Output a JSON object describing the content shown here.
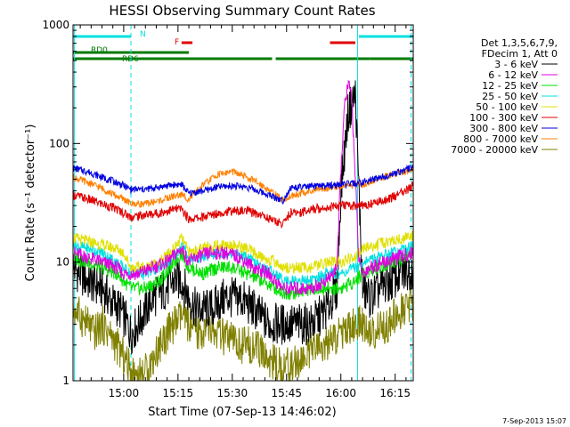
{
  "chart_data": {
    "type": "line",
    "title": "HESSI Observing Summary Count Rates",
    "xlabel": "Start Time (07-Sep-13 14:46:02)",
    "ylabel": "Count Rate (s⁻¹ detector⁻¹)",
    "y_scale": "log",
    "ylim": [
      1,
      1000
    ],
    "xlim_minutes": [
      46,
      140
    ],
    "x_ticks": [
      {
        "minute": 60,
        "label": "15:00"
      },
      {
        "minute": 75,
        "label": "15:15"
      },
      {
        "minute": 90,
        "label": "15:30"
      },
      {
        "minute": 105,
        "label": "15:45"
      },
      {
        "minute": 120,
        "label": "16:00"
      },
      {
        "minute": 135,
        "label": "16:15"
      }
    ],
    "y_ticks": [
      {
        "value": 1,
        "label": "1"
      },
      {
        "value": 10,
        "label": "10"
      },
      {
        "value": 100,
        "label": "100"
      },
      {
        "value": 1000,
        "label": "1000"
      }
    ],
    "legend_header": [
      "Det 1,3,5,6,7,9,",
      "FDecim 1, Att 0"
    ],
    "legend_position": "right",
    "timestamp": "7-Sep-2013 15:07",
    "flag_labels": {
      "n": "N",
      "f": "F",
      "rd0": "RD0",
      "rd6": "RD6"
    },
    "flags": {
      "n": {
        "color": "#00e0e0",
        "intervals": [
          [
            46,
            62
          ],
          [
            125,
            140
          ]
        ]
      },
      "f": {
        "color": "#e00000",
        "intervals": [
          [
            76,
            79
          ],
          [
            117,
            124
          ]
        ]
      },
      "rd0": {
        "color": "#007a00",
        "intervals": [
          [
            46,
            78
          ]
        ]
      },
      "rd6": {
        "color": "#007a00",
        "intervals": [
          [
            46,
            60
          ],
          [
            60,
            101
          ],
          [
            102,
            128
          ],
          [
            128,
            140
          ]
        ]
      }
    },
    "vlines": [
      {
        "minute": 46.4,
        "style": "solid",
        "color": "#00e0e0"
      },
      {
        "minute": 62,
        "style": "dashed",
        "color": "#00e0e0"
      },
      {
        "minute": 124.6,
        "style": "solid",
        "color": "#00e0e0"
      },
      {
        "minute": 139.4,
        "style": "dashed",
        "color": "#00e0e0"
      }
    ],
    "series": [
      {
        "name": "3 - 6 keV",
        "color": "#000000",
        "x": [
          46,
          50,
          54,
          57,
          59,
          61,
          62,
          64,
          68,
          72,
          74,
          76,
          78,
          80,
          84,
          88,
          92,
          96,
          100,
          104,
          108,
          112,
          116,
          119,
          120,
          122,
          124,
          126,
          128,
          131,
          134,
          137,
          140
        ],
        "y": [
          9,
          7,
          6,
          4.5,
          4,
          3,
          2.5,
          3,
          5,
          6,
          7,
          7,
          5,
          4,
          4,
          5,
          5,
          4,
          3,
          3,
          3,
          3,
          4,
          6,
          40,
          180,
          260,
          6,
          5,
          6,
          7,
          8,
          9
        ]
      },
      {
        "name": "6 - 12 keV",
        "color": "#e000e0",
        "x": [
          46,
          50,
          54,
          58,
          60,
          62,
          64,
          68,
          72,
          76,
          78,
          80,
          84,
          88,
          92,
          96,
          100,
          104,
          108,
          112,
          116,
          118,
          119,
          120,
          121,
          122,
          123,
          124,
          125,
          126,
          128,
          132,
          136,
          140
        ],
        "y": [
          12,
          11,
          10,
          9,
          8,
          8,
          8,
          9,
          10,
          13,
          10,
          11,
          12,
          12,
          11,
          9,
          8,
          6,
          6,
          6,
          7,
          8,
          10,
          60,
          200,
          320,
          250,
          50,
          10,
          8,
          9,
          10,
          11,
          12
        ]
      },
      {
        "name": "12 - 25 keV",
        "color": "#00e000",
        "x": [
          46,
          50,
          54,
          58,
          62,
          66,
          70,
          74,
          76,
          78,
          82,
          86,
          90,
          94,
          98,
          102,
          104,
          108,
          112,
          116,
          120,
          124,
          126,
          130,
          134,
          138,
          140
        ],
        "y": [
          11,
          10,
          9,
          8,
          6,
          6,
          7,
          10,
          12,
          9,
          8,
          9,
          9,
          8,
          7,
          6,
          5.5,
          5.5,
          6,
          6,
          6,
          7,
          8,
          9,
          10,
          11,
          12
        ]
      },
      {
        "name": "25 - 50 keV",
        "color": "#00e0e0",
        "x": [
          46,
          50,
          54,
          58,
          62,
          66,
          70,
          74,
          76,
          78,
          82,
          86,
          90,
          94,
          98,
          102,
          104,
          108,
          112,
          116,
          120,
          124,
          126,
          130,
          134,
          138,
          140
        ],
        "y": [
          14,
          13,
          12,
          10,
          8,
          8,
          9,
          11,
          14,
          11,
          11,
          12,
          12,
          11,
          9,
          8,
          7,
          7,
          7,
          8,
          8,
          9,
          10,
          11,
          12,
          13,
          14
        ]
      },
      {
        "name": "50 - 100 keV",
        "color": "#e0e000",
        "x": [
          46,
          50,
          54,
          58,
          60,
          62,
          66,
          70,
          74,
          76,
          78,
          82,
          86,
          90,
          94,
          98,
          102,
          104,
          108,
          112,
          116,
          120,
          124,
          126,
          130,
          134,
          138,
          140
        ],
        "y": [
          16,
          15,
          14,
          13,
          12,
          9,
          9,
          10,
          13,
          16,
          12,
          13,
          14,
          14,
          13,
          11,
          10,
          9,
          9,
          9,
          10,
          10,
          11,
          13,
          14,
          15,
          16,
          17
        ]
      },
      {
        "name": "100 - 300 keV",
        "color": "#e00000",
        "x": [
          46,
          50,
          54,
          58,
          60,
          62,
          66,
          70,
          74,
          76,
          78,
          82,
          86,
          90,
          94,
          98,
          102,
          104,
          106,
          108,
          112,
          116,
          120,
          124,
          126,
          130,
          134,
          138,
          140
        ],
        "y": [
          37,
          34,
          31,
          28,
          26,
          24,
          25,
          26,
          28,
          28,
          23,
          24,
          26,
          27,
          27,
          25,
          22,
          21,
          26,
          26,
          28,
          29,
          30,
          30,
          30,
          32,
          35,
          40,
          44
        ]
      },
      {
        "name": "300 - 800 keV",
        "color": "#0000e0",
        "x": [
          46,
          50,
          54,
          58,
          60,
          62,
          66,
          70,
          74,
          76,
          78,
          82,
          86,
          90,
          94,
          98,
          102,
          104,
          106,
          110,
          116,
          120,
          124,
          126,
          130,
          134,
          138,
          140
        ],
        "y": [
          62,
          58,
          52,
          47,
          44,
          41,
          41,
          43,
          45,
          45,
          38,
          40,
          43,
          44,
          43,
          39,
          35,
          33,
          42,
          43,
          44,
          45,
          46,
          47,
          51,
          55,
          60,
          64
        ]
      },
      {
        "name": "800 - 7000 keV",
        "color": "#ff8000",
        "x": [
          46,
          50,
          54,
          58,
          60,
          62,
          66,
          70,
          74,
          76,
          78,
          82,
          86,
          90,
          94,
          98,
          102,
          104,
          106,
          110,
          116,
          120,
          124,
          126,
          130,
          134,
          138,
          140
        ],
        "y": [
          52,
          47,
          42,
          36,
          34,
          31,
          31,
          33,
          36,
          37,
          34,
          45,
          55,
          58,
          52,
          45,
          37,
          33,
          36,
          39,
          42,
          44,
          45,
          45,
          50,
          55,
          58,
          60
        ]
      },
      {
        "name": "7000 - 20000 keV",
        "color": "#808000",
        "x": [
          46,
          48,
          50,
          52,
          54,
          56,
          58,
          60,
          62,
          64,
          66,
          68,
          70,
          72,
          74,
          76,
          78,
          80,
          84,
          88,
          92,
          96,
          100,
          104,
          108,
          112,
          116,
          120,
          124,
          126,
          128,
          132,
          136,
          140
        ],
        "y": [
          4,
          3.5,
          3,
          2.5,
          3,
          2.5,
          2,
          1.6,
          1.2,
          1.1,
          1.2,
          1.5,
          2,
          2.5,
          3,
          3.5,
          3,
          2.5,
          2.6,
          2.3,
          2,
          2,
          1.5,
          1.3,
          1.4,
          1.8,
          2,
          2.5,
          3,
          3,
          2.5,
          2.8,
          3.8,
          4.5
        ]
      }
    ]
  }
}
